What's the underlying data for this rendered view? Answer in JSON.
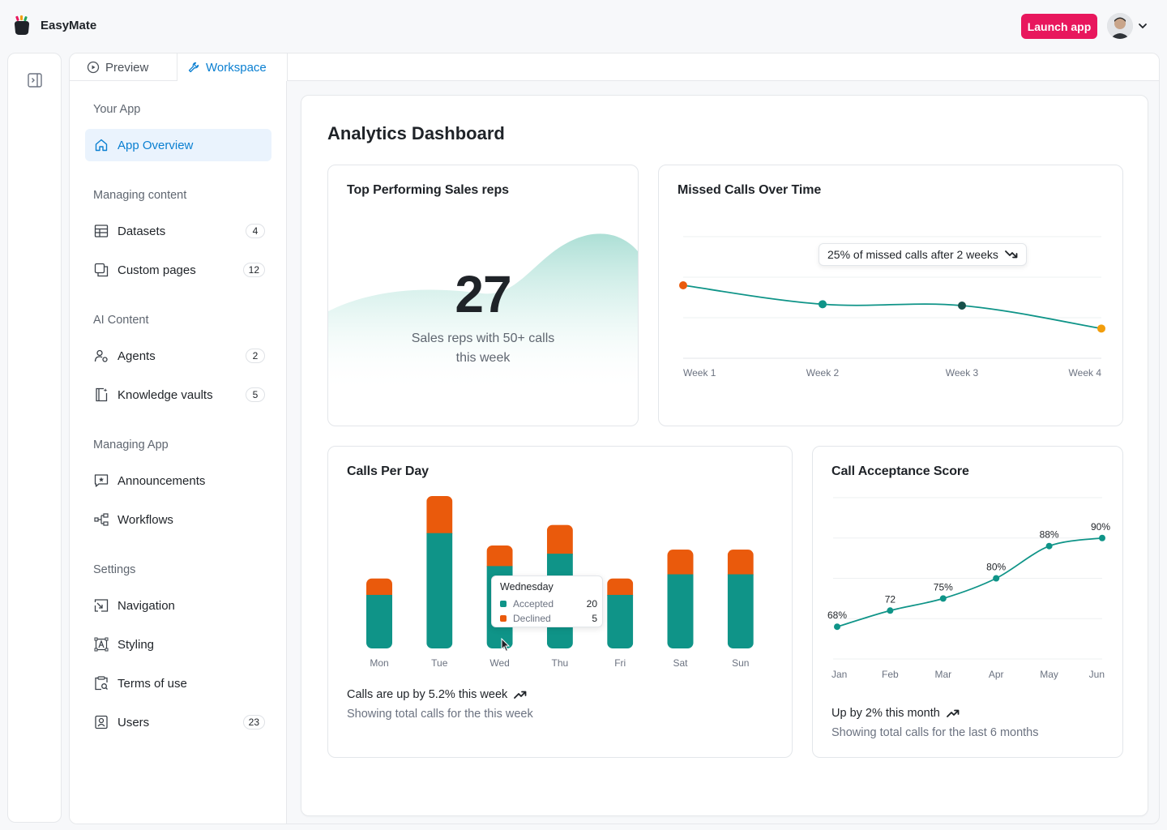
{
  "app": {
    "name": "EasyMate",
    "launch_label": "Launch app"
  },
  "tabs": [
    {
      "label": "Preview"
    },
    {
      "label": "Workspace"
    }
  ],
  "nav": {
    "sections": [
      {
        "title": "Your App"
      },
      {
        "title": "Managing content"
      },
      {
        "title": "AI Content"
      },
      {
        "title": "Managing App"
      },
      {
        "title": "Settings"
      }
    ],
    "items": [
      {
        "label": "App Overview",
        "icon": "home-icon",
        "active": true
      },
      {
        "label": "Datasets",
        "icon": "table-icon",
        "count": "4"
      },
      {
        "label": "Custom pages",
        "icon": "pages-icon",
        "count": "12"
      },
      {
        "label": "Agents",
        "icon": "agents-icon",
        "count": "2"
      },
      {
        "label": "Knowledge vaults",
        "icon": "vault-icon",
        "count": "5"
      },
      {
        "label": "Announcements",
        "icon": "announcement-icon"
      },
      {
        "label": "Workflows",
        "icon": "workflow-icon"
      },
      {
        "label": "Navigation",
        "icon": "navigation-icon"
      },
      {
        "label": "Styling",
        "icon": "styling-icon"
      },
      {
        "label": "Terms of use",
        "icon": "terms-icon"
      },
      {
        "label": "Users",
        "icon": "users-icon",
        "count": "23"
      }
    ]
  },
  "dashboard": {
    "title": "Analytics Dashboard",
    "top_reps": {
      "title": "Top Performing Sales reps",
      "value": "27",
      "subtitle_line1": "Sales reps with 50+ calls",
      "subtitle_line2": "this week"
    },
    "missed_calls": {
      "title": "Missed Calls Over Time",
      "callout": "25% of missed calls after 2 weeks"
    },
    "calls_per_day": {
      "title": "Calls Per Day",
      "tooltip": {
        "title": "Wednesday",
        "accepted_label": "Accepted",
        "accepted_value": "20",
        "declined_label": "Declined",
        "declined_value": "5"
      },
      "footer_main": "Calls are up by 5.2% this week",
      "footer_sub": "Showing total calls for the this week"
    },
    "acceptance": {
      "title": "Call Acceptance Score",
      "footer_main": "Up by 2% this month",
      "footer_sub": "Showing total calls for the last 6 months"
    }
  },
  "colors": {
    "accent": "#0a7fd1",
    "brand_pink": "#e8175d",
    "teal": "#0f9488",
    "orange": "#ea5a0c",
    "amber": "#f29d0c"
  },
  "chart_data": [
    {
      "type": "line",
      "title": "Missed Calls Over Time",
      "categories": [
        "Week 1",
        "Week 2",
        "Week 3",
        "Week 4"
      ],
      "series": [
        {
          "values": [
            54,
            40,
            39,
            22
          ]
        }
      ],
      "ylim": [
        0,
        90
      ],
      "grid": true,
      "y_axis_labels": false
    },
    {
      "type": "bar",
      "stacked": true,
      "title": "Calls Per Day",
      "categories": [
        "Mon",
        "Tue",
        "Wed",
        "Thu",
        "Fri",
        "Sat",
        "Sun"
      ],
      "series": [
        {
          "name": "Accepted",
          "values": [
            13,
            28,
            20,
            23,
            13,
            18,
            18
          ]
        },
        {
          "name": "Declined",
          "values": [
            4,
            9,
            5,
            7,
            4,
            6,
            6
          ]
        }
      ],
      "ylim": [
        0,
        37
      ]
    },
    {
      "type": "line",
      "title": "Call Acceptance Score",
      "categories": [
        "Jan",
        "Feb",
        "Mar",
        "Apr",
        "May",
        "Jun"
      ],
      "series": [
        {
          "values": [
            68,
            72,
            75,
            80,
            88,
            90
          ],
          "point_labels": [
            "68%",
            "72",
            "75%",
            "80%",
            "88%",
            "90%"
          ]
        }
      ],
      "ylim": [
        60,
        100
      ],
      "grid": true
    }
  ]
}
